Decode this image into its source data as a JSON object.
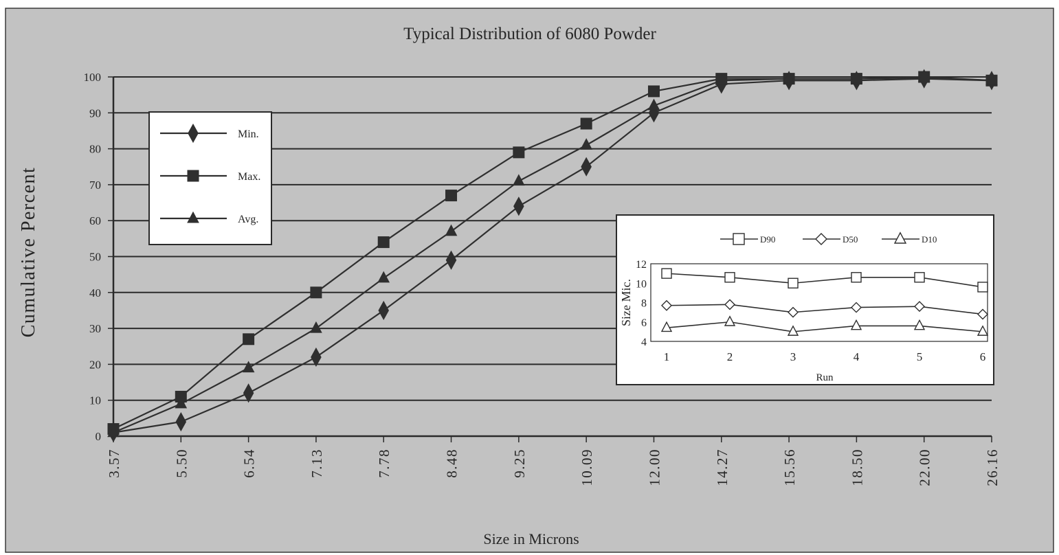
{
  "chart_data": [
    {
      "type": "line",
      "title": "Typical Distribution of 6080 Powder",
      "xlabel": "Size in Microns",
      "ylabel": "Cumulative Percent",
      "categories": [
        "3.57",
        "5.50",
        "6.54",
        "7.13",
        "7.78",
        "8.48",
        "9.25",
        "10.09",
        "12.00",
        "14.27",
        "15.56",
        "18.50",
        "22.00",
        "26.16"
      ],
      "y_ticks": [
        "0",
        "10",
        "20",
        "30",
        "40",
        "50",
        "60",
        "70",
        "80",
        "90",
        "100"
      ],
      "ylim": [
        0,
        100
      ],
      "grid": true,
      "legend_position": "top-left",
      "series": [
        {
          "name": "Min.",
          "marker": "diamond",
          "values": [
            1,
            4,
            12,
            22,
            35,
            49,
            64,
            75,
            90,
            98,
            99,
            99,
            99.5,
            99
          ]
        },
        {
          "name": "Max.",
          "marker": "square",
          "values": [
            2,
            11,
            27,
            40,
            54,
            67,
            79,
            87,
            96,
            99.5,
            99.5,
            99.5,
            100,
            99
          ]
        },
        {
          "name": "Avg.",
          "marker": "triangle",
          "values": [
            1,
            9,
            19,
            30,
            44,
            57,
            71,
            81,
            92,
            99,
            99.5,
            99.5,
            99.8,
            99
          ]
        }
      ]
    },
    {
      "type": "line",
      "title": "",
      "xlabel": "Run",
      "ylabel": "Size Mic.",
      "x": [
        1,
        2,
        3,
        4,
        5,
        6
      ],
      "x_ticks": [
        "1",
        "2",
        "3",
        "4",
        "5",
        "6"
      ],
      "y_ticks": [
        "4",
        "6",
        "8",
        "10",
        "12"
      ],
      "ylim": [
        4,
        12
      ],
      "grid": false,
      "legend_position": "top",
      "series": [
        {
          "name": "D90",
          "marker": "open-square",
          "values": [
            11,
            10.6,
            10,
            10.6,
            10.6,
            9.6
          ]
        },
        {
          "name": "D50",
          "marker": "open-diamond",
          "values": [
            7.7,
            7.8,
            7,
            7.5,
            7.6,
            6.8
          ]
        },
        {
          "name": "D10",
          "marker": "open-triangle",
          "values": [
            5.4,
            6,
            5,
            5.6,
            5.6,
            5
          ]
        }
      ]
    }
  ],
  "colors": {
    "panel": "#c2c2c2",
    "ink": "#262626",
    "line": "#2f2f2f",
    "box": "#ffffff"
  }
}
